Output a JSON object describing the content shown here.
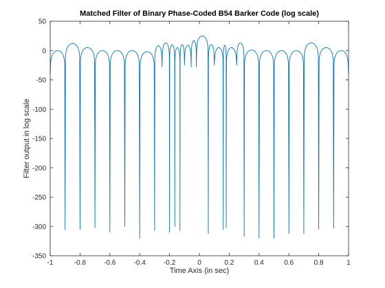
{
  "chart_data": {
    "type": "line",
    "title": "Matched Filter of Binary Phase-Coded B54 Barker Code (log scale)",
    "xlabel": "Time Axis (in sec)",
    "ylabel": "Filter output in log scale",
    "xlim": [
      -1,
      1
    ],
    "ylim": [
      -350,
      50
    ],
    "xticks": [
      -1,
      -0.8,
      -0.6,
      -0.4,
      -0.2,
      0,
      0.2,
      0.4,
      0.6,
      0.8,
      1
    ],
    "xtick_labels": [
      "-1",
      "-0.8",
      "-0.6",
      "-0.4",
      "-0.2",
      "0",
      "0.2",
      "0.4",
      "0.6",
      "0.8",
      "1"
    ],
    "yticks": [
      50,
      0,
      -50,
      -100,
      -150,
      -200,
      -250,
      -300,
      -350
    ],
    "ytick_labels": [
      "50",
      "0",
      "-50",
      "-100",
      "-150",
      "-200",
      "-250",
      "-300",
      "-350"
    ],
    "grid": false,
    "line_color": "#0072BD",
    "lobes": [
      {
        "start": -1.0,
        "end": -0.9,
        "peak": 0
      },
      {
        "start": -0.9,
        "end": -0.8,
        "peak": 12
      },
      {
        "start": -0.8,
        "end": -0.7,
        "peak": 5
      },
      {
        "start": -0.7,
        "end": -0.6,
        "peak": 0
      },
      {
        "start": -0.6,
        "end": -0.5,
        "peak": 0
      },
      {
        "start": -0.5,
        "end": -0.4,
        "peak": 0
      },
      {
        "start": -0.4,
        "end": -0.3,
        "peak": -2
      },
      {
        "start": -0.3,
        "end": -0.25,
        "peak": 8
      },
      {
        "start": -0.25,
        "end": -0.2,
        "peak": 13
      },
      {
        "start": -0.2,
        "end": -0.165,
        "peak": 10
      },
      {
        "start": -0.165,
        "end": -0.13,
        "peak": 5
      },
      {
        "start": -0.13,
        "end": -0.1,
        "peak": 10
      },
      {
        "start": -0.1,
        "end": -0.055,
        "peak": 9
      },
      {
        "start": -0.055,
        "end": -0.02,
        "peak": 17
      },
      {
        "start": -0.02,
        "end": 0.06,
        "peak": 25
      },
      {
        "start": 0.06,
        "end": 0.1,
        "peak": 10
      },
      {
        "start": 0.1,
        "end": 0.16,
        "peak": 5
      },
      {
        "start": 0.16,
        "end": 0.18,
        "peak": 9
      },
      {
        "start": 0.18,
        "end": 0.25,
        "peak": 5
      },
      {
        "start": 0.25,
        "end": 0.3,
        "peak": 13
      },
      {
        "start": 0.3,
        "end": 0.4,
        "peak": 1
      },
      {
        "start": 0.4,
        "end": 0.5,
        "peak": 0
      },
      {
        "start": 0.5,
        "end": 0.6,
        "peak": 0
      },
      {
        "start": 0.6,
        "end": 0.7,
        "peak": 0
      },
      {
        "start": 0.7,
        "end": 0.8,
        "peak": 13
      },
      {
        "start": 0.8,
        "end": 0.9,
        "peak": 5
      },
      {
        "start": 0.9,
        "end": 1.0,
        "peak": 0
      }
    ],
    "nulls": [
      {
        "x": -0.9,
        "y": -305
      },
      {
        "x": -0.8,
        "y": -305
      },
      {
        "x": -0.7,
        "y": -302
      },
      {
        "x": -0.6,
        "y": -310
      },
      {
        "x": -0.5,
        "y": -300
      },
      {
        "x": -0.4,
        "y": -320
      },
      {
        "x": -0.3,
        "y": -307
      },
      {
        "x": -0.25,
        "y": -28
      },
      {
        "x": -0.2,
        "y": -310
      },
      {
        "x": -0.165,
        "y": -300
      },
      {
        "x": -0.13,
        "y": -307
      },
      {
        "x": -0.1,
        "y": -25
      },
      {
        "x": -0.055,
        "y": -28
      },
      {
        "x": -0.02,
        "y": -28
      },
      {
        "x": 0.06,
        "y": -312
      },
      {
        "x": 0.1,
        "y": -25
      },
      {
        "x": 0.16,
        "y": -305
      },
      {
        "x": 0.18,
        "y": -302
      },
      {
        "x": 0.25,
        "y": -25
      },
      {
        "x": 0.3,
        "y": -317
      },
      {
        "x": 0.4,
        "y": -320
      },
      {
        "x": 0.5,
        "y": -320
      },
      {
        "x": 0.6,
        "y": -312
      },
      {
        "x": 0.7,
        "y": -312
      },
      {
        "x": 0.8,
        "y": -305
      },
      {
        "x": 0.9,
        "y": -303
      }
    ],
    "endpoints": [
      {
        "x": -1.0,
        "y": -40
      },
      {
        "x": 1.0,
        "y": -40
      }
    ]
  }
}
